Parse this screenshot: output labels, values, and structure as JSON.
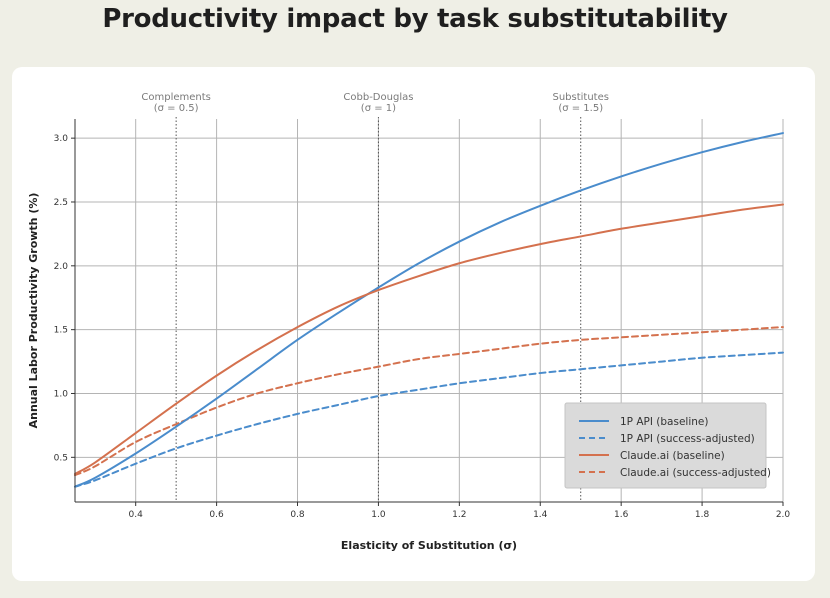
{
  "page_title": "Productivity impact by task substitutability",
  "chart_data": {
    "type": "line",
    "title": "Productivity impact by task substitutability",
    "xlabel": "Elasticity of Substitution (σ)",
    "ylabel": "Annual Labor Productivity Growth (%)",
    "xlim": [
      0.25,
      2.0
    ],
    "ylim": [
      0.15,
      3.15
    ],
    "grid": true,
    "x_ticks": [
      0.4,
      0.6,
      0.8,
      1.0,
      1.2,
      1.4,
      1.6,
      1.8,
      2.0
    ],
    "x_tick_labels": [
      "0.4",
      "0.6",
      "0.8",
      "1.0",
      "1.2",
      "1.4",
      "1.6",
      "1.8",
      "2.0"
    ],
    "y_ticks": [
      0.5,
      1.0,
      1.5,
      2.0,
      2.5,
      3.0
    ],
    "y_tick_labels": [
      "0.5",
      "1.0",
      "1.5",
      "2.0",
      "2.5",
      "3.0"
    ],
    "reference_lines": [
      {
        "x": 0.5,
        "label": "Complements",
        "sublabel": "(σ = 0.5)"
      },
      {
        "x": 1.0,
        "label": "Cobb-Douglas",
        "sublabel": "(σ = 1)"
      },
      {
        "x": 1.5,
        "label": "Substitutes",
        "sublabel": "(σ = 1.5)"
      }
    ],
    "legend_position": "lower-right",
    "x": [
      0.25,
      0.3,
      0.4,
      0.5,
      0.6,
      0.7,
      0.8,
      0.9,
      1.0,
      1.1,
      1.2,
      1.3,
      1.4,
      1.5,
      1.6,
      1.7,
      1.8,
      1.9,
      2.0
    ],
    "series": [
      {
        "name": "1P API (baseline)",
        "color": "#4a8ccc",
        "style": "solid",
        "values": [
          0.27,
          0.34,
          0.53,
          0.74,
          0.96,
          1.19,
          1.42,
          1.63,
          1.83,
          2.02,
          2.19,
          2.34,
          2.47,
          2.59,
          2.7,
          2.8,
          2.89,
          2.97,
          3.04
        ]
      },
      {
        "name": "1P API (success-adjusted)",
        "color": "#4a8ccc",
        "style": "dashed",
        "values": [
          0.27,
          0.32,
          0.45,
          0.57,
          0.67,
          0.76,
          0.84,
          0.91,
          0.98,
          1.03,
          1.08,
          1.12,
          1.16,
          1.19,
          1.22,
          1.25,
          1.28,
          1.3,
          1.32
        ]
      },
      {
        "name": "Claude.ai (baseline)",
        "color": "#d4714e",
        "style": "solid",
        "values": [
          0.37,
          0.46,
          0.69,
          0.92,
          1.14,
          1.34,
          1.52,
          1.68,
          1.81,
          1.92,
          2.02,
          2.1,
          2.17,
          2.23,
          2.29,
          2.34,
          2.39,
          2.44,
          2.48
        ]
      },
      {
        "name": "Claude.ai (success-adjusted)",
        "color": "#d4714e",
        "style": "dashed",
        "values": [
          0.36,
          0.43,
          0.62,
          0.76,
          0.89,
          1.0,
          1.08,
          1.15,
          1.21,
          1.27,
          1.31,
          1.35,
          1.39,
          1.42,
          1.44,
          1.46,
          1.48,
          1.5,
          1.52
        ]
      }
    ]
  }
}
